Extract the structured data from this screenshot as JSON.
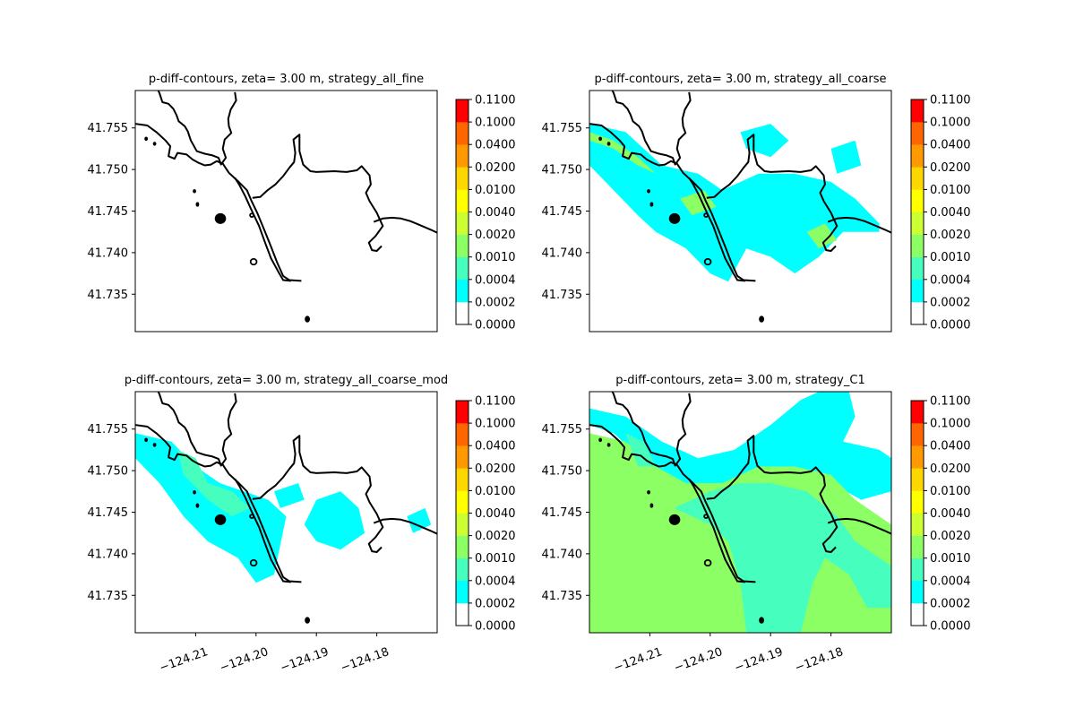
{
  "chart_data": [
    {
      "type": "heatmap",
      "title": "p-diff-contours, zeta= 3.00 m, strategy_all_fine",
      "xlim": [
        -124.22,
        -124.17
      ],
      "ylim": [
        41.7305,
        41.7595
      ],
      "xticks": [],
      "yticks": [
        "41.735",
        "41.740",
        "41.745",
        "41.750",
        "41.755"
      ],
      "fill": []
    },
    {
      "type": "heatmap",
      "title": "p-diff-contours, zeta= 3.00 m, strategy_all_coarse",
      "xlim": [
        -124.22,
        -124.17
      ],
      "ylim": [
        41.7305,
        41.7595
      ],
      "xticks": [],
      "yticks": [
        "41.735",
        "41.740",
        "41.745",
        "41.750",
        "41.755"
      ],
      "fill": [
        {
          "level": "0.0002-0.0004",
          "regions": [
            [
              [
                -124.22,
                41.7555
              ],
              [
                -124.214,
                41.7545
              ],
              [
                -124.208,
                41.7505
              ],
              [
                -124.202,
                41.7495
              ],
              [
                -124.198,
                41.7475
              ],
              [
                -124.192,
                41.7495
              ],
              [
                -124.186,
                41.7495
              ],
              [
                -124.18,
                41.7485
              ],
              [
                -124.176,
                41.7465
              ],
              [
                -124.172,
                41.7435
              ],
              [
                -124.172,
                41.7425
              ],
              [
                -124.178,
                41.7425
              ],
              [
                -124.182,
                41.7395
              ],
              [
                -124.186,
                41.7375
              ],
              [
                -124.19,
                41.7395
              ],
              [
                -124.194,
                41.7405
              ],
              [
                -124.197,
                41.7365
              ],
              [
                -124.2,
                41.7375
              ],
              [
                -124.204,
                41.7405
              ],
              [
                -124.209,
                41.7425
              ],
              [
                -124.212,
                41.7445
              ],
              [
                -124.216,
                41.7475
              ],
              [
                -124.22,
                41.7505
              ]
            ],
            [
              [
                -124.195,
                41.7545
              ],
              [
                -124.19,
                41.7555
              ],
              [
                -124.187,
                41.7535
              ],
              [
                -124.19,
                41.7515
              ],
              [
                -124.194,
                41.7525
              ]
            ],
            [
              [
                -124.18,
                41.7525
              ],
              [
                -124.176,
                41.7535
              ],
              [
                -124.175,
                41.7505
              ],
              [
                -124.179,
                41.7495
              ]
            ]
          ]
        },
        {
          "level": "0.0010-0.0020",
          "regions": [
            [
              [
                -124.22,
                41.7545
              ],
              [
                -124.216,
                41.7535
              ],
              [
                -124.212,
                41.7515
              ],
              [
                -124.209,
                41.7495
              ],
              [
                -124.212,
                41.7505
              ],
              [
                -124.216,
                41.7525
              ],
              [
                -124.22,
                41.7535
              ]
            ],
            [
              [
                -124.205,
                41.7465
              ],
              [
                -124.201,
                41.7475
              ],
              [
                -124.199,
                41.7455
              ],
              [
                -124.203,
                41.7445
              ]
            ],
            [
              [
                -124.184,
                41.7425
              ],
              [
                -124.181,
                41.7435
              ],
              [
                -124.179,
                41.7415
              ],
              [
                -124.182,
                41.7405
              ]
            ]
          ]
        }
      ]
    },
    {
      "type": "heatmap",
      "title": "p-diff-contours, zeta= 3.00 m, strategy_all_coarse_mod",
      "xlim": [
        -124.22,
        -124.17
      ],
      "ylim": [
        41.7305,
        41.7595
      ],
      "xticks": [
        "−124.21",
        "−124.20",
        "−124.19",
        "−124.18"
      ],
      "yticks": [
        "41.735",
        "41.740",
        "41.745",
        "41.750",
        "41.755"
      ],
      "fill": [
        {
          "level": "0.0002-0.0004",
          "regions": [
            [
              [
                -124.22,
                41.7545
              ],
              [
                -124.214,
                41.7535
              ],
              [
                -124.21,
                41.7505
              ],
              [
                -124.206,
                41.7485
              ],
              [
                -124.202,
                41.7475
              ],
              [
                -124.198,
                41.7465
              ],
              [
                -124.195,
                41.7445
              ],
              [
                -124.197,
                41.7375
              ],
              [
                -124.2,
                41.7365
              ],
              [
                -124.203,
                41.7395
              ],
              [
                -124.208,
                41.7415
              ],
              [
                -124.212,
                41.7445
              ],
              [
                -124.216,
                41.7485
              ],
              [
                -124.22,
                41.7515
              ]
            ],
            [
              [
                -124.19,
                41.7465
              ],
              [
                -124.186,
                41.7475
              ],
              [
                -124.183,
                41.7455
              ],
              [
                -124.182,
                41.7425
              ],
              [
                -124.186,
                41.7405
              ],
              [
                -124.19,
                41.7415
              ],
              [
                -124.192,
                41.7435
              ]
            ],
            [
              [
                -124.197,
                41.7475
              ],
              [
                -124.193,
                41.7485
              ],
              [
                -124.192,
                41.7465
              ],
              [
                -124.196,
                41.7455
              ]
            ],
            [
              [
                -124.175,
                41.7445
              ],
              [
                -124.172,
                41.7455
              ],
              [
                -124.171,
                41.7435
              ],
              [
                -124.174,
                41.7425
              ]
            ]
          ]
        },
        {
          "level": "0.0004-0.0010",
          "regions": [
            [
              [
                -124.213,
                41.7525
              ],
              [
                -124.21,
                41.7515
              ],
              [
                -124.208,
                41.7485
              ],
              [
                -124.204,
                41.7475
              ],
              [
                -124.201,
                41.7455
              ],
              [
                -124.204,
                41.7445
              ],
              [
                -124.208,
                41.7465
              ],
              [
                -124.212,
                41.7495
              ]
            ]
          ]
        }
      ]
    },
    {
      "type": "heatmap",
      "title": "p-diff-contours, zeta= 3.00 m, strategy_C1",
      "xlim": [
        -124.22,
        -124.17
      ],
      "ylim": [
        41.7305,
        41.7595
      ],
      "xticks": [
        "−124.21",
        "−124.20",
        "−124.19",
        "−124.18"
      ],
      "yticks": [
        "41.735",
        "41.740",
        "41.745",
        "41.750",
        "41.755"
      ],
      "fill": [
        {
          "level": "0.0002-0.0004",
          "regions": [
            [
              [
                -124.22,
                41.7575
              ],
              [
                -124.214,
                41.7565
              ],
              [
                -124.208,
                41.7535
              ],
              [
                -124.202,
                41.7515
              ],
              [
                -124.196,
                41.7525
              ],
              [
                -124.19,
                41.7555
              ],
              [
                -124.185,
                41.7585
              ],
              [
                -124.182,
                41.7595
              ],
              [
                -124.177,
                41.7595
              ],
              [
                -124.176,
                41.7565
              ],
              [
                -124.178,
                41.7535
              ],
              [
                -124.172,
                41.7525
              ],
              [
                -124.17,
                41.7515
              ],
              [
                -124.17,
                41.7475
              ],
              [
                -124.175,
                41.7465
              ],
              [
                -124.18,
                41.7485
              ],
              [
                -124.186,
                41.7495
              ],
              [
                -124.192,
                41.7495
              ],
              [
                -124.198,
                41.7475
              ],
              [
                -124.204,
                41.7475
              ],
              [
                -124.21,
                41.7505
              ],
              [
                -124.216,
                41.7545
              ],
              [
                -124.22,
                41.7555
              ]
            ]
          ]
        },
        {
          "level": "0.0010-0.0020",
          "regions": [
            [
              [
                -124.22,
                41.7545
              ],
              [
                -124.214,
                41.7535
              ],
              [
                -124.209,
                41.7505
              ],
              [
                -124.204,
                41.7485
              ],
              [
                -124.198,
                41.7485
              ],
              [
                -124.192,
                41.7505
              ],
              [
                -124.186,
                41.7505
              ],
              [
                -124.18,
                41.7495
              ],
              [
                -124.176,
                41.7465
              ],
              [
                -124.17,
                41.7435
              ],
              [
                -124.17,
                41.7305
              ],
              [
                -124.22,
                41.7305
              ]
            ]
          ]
        },
        {
          "level": "0.0004-0.0010",
          "regions": [
            [
              [
                -124.206,
                41.7455
              ],
              [
                -124.2,
                41.7475
              ],
              [
                -124.195,
                41.7485
              ],
              [
                -124.19,
                41.7485
              ],
              [
                -124.184,
                41.7475
              ],
              [
                -124.179,
                41.7445
              ],
              [
                -124.176,
                41.7415
              ],
              [
                -124.172,
                41.7395
              ],
              [
                -124.17,
                41.7385
              ],
              [
                -124.17,
                41.7335
              ],
              [
                -124.174,
                41.7335
              ],
              [
                -124.177,
                41.7375
              ],
              [
                -124.181,
                41.7395
              ],
              [
                -124.183,
                41.7365
              ],
              [
                -124.185,
                41.7305
              ],
              [
                -124.194,
                41.7305
              ],
              [
                -124.195,
                41.7365
              ],
              [
                -124.197,
                41.7415
              ],
              [
                -124.2,
                41.7435
              ]
            ],
            [
              [
                -124.214,
                41.7545
              ],
              [
                -124.211,
                41.7535
              ],
              [
                -124.209,
                41.7505
              ],
              [
                -124.212,
                41.7505
              ]
            ]
          ]
        }
      ]
    }
  ],
  "colorbar": {
    "levels": [
      "0.0000",
      "0.0002",
      "0.0004",
      "0.0010",
      "0.0020",
      "0.0040",
      "0.0100",
      "0.0200",
      "0.0400",
      "0.1000",
      "0.1100"
    ],
    "colors": [
      "#ffffff",
      "#00ffff",
      "#46ffbe",
      "#8cff64",
      "#ccff33",
      "#ffff00",
      "#ffd700",
      "#ff9900",
      "#ff6600",
      "#ff3300"
    ],
    "top_color": "#ff0000"
  }
}
